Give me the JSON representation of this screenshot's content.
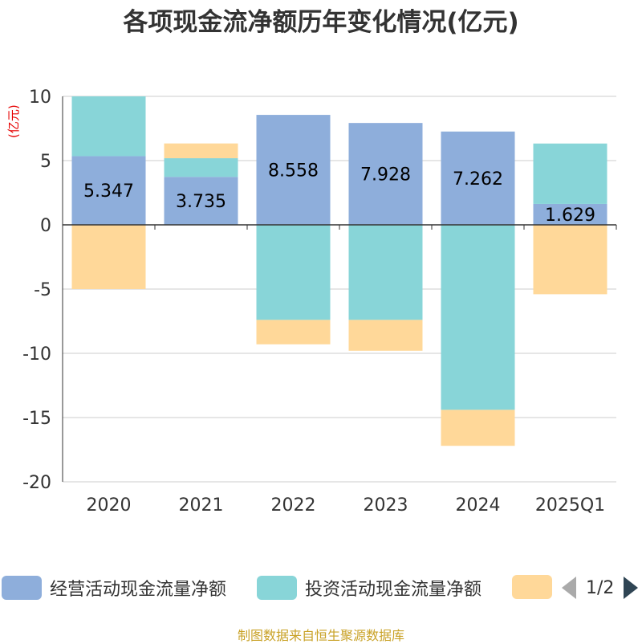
{
  "chart_data": {
    "type": "bar",
    "stacked": true,
    "title": "各项现金流净额历年变化情况(亿元)",
    "unit_label": "(亿元)",
    "categories": [
      "2020",
      "2021",
      "2022",
      "2023",
      "2024",
      "2025Q1"
    ],
    "ylim": [
      -20,
      10
    ],
    "yticks": [
      10,
      5,
      0,
      -5,
      -10,
      -15,
      -20
    ],
    "grid": true,
    "series": [
      {
        "name": "经营活动现金流量净额",
        "color": "#8eaedb",
        "values": [
          5.347,
          3.735,
          8.558,
          7.928,
          7.262,
          1.629
        ],
        "labels": [
          "5.347",
          "3.735",
          "8.558",
          "7.928",
          "7.262",
          "1.629"
        ]
      },
      {
        "name": "投资活动现金流量净额",
        "color": "#88d5d8",
        "values": [
          4.7,
          1.45,
          -7.4,
          -7.4,
          -14.4,
          4.7
        ]
      },
      {
        "name": "",
        "color": "#ffd899",
        "values": [
          -5.0,
          1.15,
          -1.9,
          -2.4,
          -2.8,
          -5.4
        ]
      }
    ]
  },
  "legend": {
    "page": "1/2"
  },
  "source": "制图数据来自恒生聚源数据库"
}
